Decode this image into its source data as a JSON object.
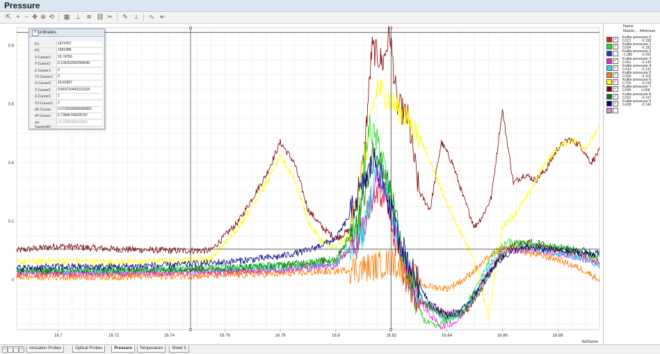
{
  "window": {
    "title": "Pressure"
  },
  "toolbar": {
    "icons": [
      "cursor-icon",
      "zoom-in-icon",
      "zoom-out-icon",
      "pan-icon",
      "zoom-region-icon",
      "reset-view-icon",
      "chart-type-icon",
      "axis-icon",
      "series-icon",
      "link-icon",
      "unlink-icon",
      "marker-icon",
      "measure-icon",
      "trend-icon",
      "back-icon"
    ]
  },
  "coordinates_panel": {
    "title": "Coordinates",
    "rows": [
      {
        "label": "P1:",
        "value": "1674767"
      },
      {
        "label": "P2:",
        "value": "1681988"
      },
      {
        "label": "X-Cursor1:",
        "value": "16.74766"
      },
      {
        "label": "Y-Cursor1:",
        "value": "0.105252952056648"
      },
      {
        "label": "Z-Cursor1:",
        "value": "0"
      },
      {
        "label": "Y2-Cursor1:",
        "value": "0"
      },
      {
        "label": "X-Cursor2:",
        "value": "16.81987"
      },
      {
        "label": "Y-Cursor2:",
        "value": "0.843710442312318"
      },
      {
        "label": "Z-Cursor2:",
        "value": "1"
      },
      {
        "label": "Y2-Cursor2:",
        "value": "1"
      },
      {
        "label": "dX-Cursor:",
        "value": "0.0722099999999983"
      },
      {
        "label": "dY-Cursor:",
        "value": "0.73845749025767"
      },
      {
        "label": "dY-Cursor/dX:",
        "value": "10.2265266019261"
      }
    ]
  },
  "legend": {
    "header": {
      "name": "Name",
      "max": "Maxim...",
      "min": "Minimum"
    },
    "items": [
      {
        "name": "Kulite pressure 0",
        "max": "0.521",
        "min": "-0.158",
        "color": "#e02020",
        "checked": true
      },
      {
        "name": "Kulite pressure 1",
        "max": "0.594",
        "min": "-0.182",
        "color": "#22dd22",
        "checked": true
      },
      {
        "name": "Kulite pressure 2",
        "max": "-1.385",
        "min": "-2.262",
        "color": "#2233cc",
        "checked": false
      },
      {
        "name": "Kulite pressure 3",
        "max": "0.462",
        "min": "-0.149",
        "color": "#ee22ee",
        "checked": true
      },
      {
        "name": "Kulite pressure 4",
        "max": "0.419",
        "min": "-0.132",
        "color": "#22dddd",
        "checked": true
      },
      {
        "name": "Kulite pressure 5",
        "max": "0.350",
        "min": "-0.118",
        "color": "#ff7b00",
        "checked": true
      },
      {
        "name": "Kulite pressure 6",
        "max": "0.700",
        "min": "-0.234",
        "color": "#ffff00",
        "checked": true
      },
      {
        "name": "Kulite pressure 7",
        "max": "0.845",
        "min": "0.058",
        "color": "#7f0000",
        "checked": true
      },
      {
        "name": "Kulite pressure 8",
        "max": "0.591",
        "min": "-0.197",
        "color": "#117711",
        "checked": true
      },
      {
        "name": "Kulite pressure 9",
        "max": "0.430",
        "min": "-0.140",
        "color": "#000080",
        "checked": true
      },
      {
        "name": "",
        "max": "",
        "min": "",
        "color": "#dd88dd",
        "checked": false
      }
    ]
  },
  "chart_data": {
    "type": "line",
    "xlabel": "NoName",
    "ylabel": "",
    "xlim": [
      16.685,
      16.895
    ],
    "ylim": [
      -0.17,
      0.86
    ],
    "x_ticks": [
      "16.7",
      "16.72",
      "16.74",
      "16.76",
      "16.78",
      "16.8",
      "16.82",
      "16.84",
      "16.86",
      "16.88"
    ],
    "x_tick_values": [
      16.7,
      16.72,
      16.74,
      16.76,
      16.78,
      16.8,
      16.82,
      16.84,
      16.86,
      16.88
    ],
    "y_ticks": [
      "0",
      "0.2",
      "0.4",
      "0.6",
      "0.8"
    ],
    "y_tick_values": [
      0,
      0.2,
      0.4,
      0.6,
      0.8
    ],
    "grid": true,
    "cursors": {
      "x1": 16.74766,
      "x2": 16.81987,
      "y1": 0.105,
      "y2": 0.844
    },
    "series": [
      {
        "name": "Kulite pressure 7",
        "color": "#7f0000",
        "x": [
          16.685,
          16.7,
          16.72,
          16.74,
          16.755,
          16.765,
          16.775,
          16.78,
          16.785,
          16.79,
          16.795,
          16.8,
          16.805,
          16.81,
          16.813,
          16.817,
          16.8195,
          16.822,
          16.826,
          16.83,
          16.834,
          16.838,
          16.842,
          16.846,
          16.85,
          16.853,
          16.856,
          16.86,
          16.864,
          16.868,
          16.872,
          16.876,
          16.88,
          16.884,
          16.888,
          16.892,
          16.895
        ],
        "y": [
          0.1,
          0.115,
          0.105,
          0.1,
          0.1,
          0.2,
          0.36,
          0.47,
          0.4,
          0.24,
          0.18,
          0.14,
          0.17,
          0.4,
          0.79,
          0.74,
          0.845,
          0.6,
          0.55,
          0.3,
          0.24,
          0.47,
          0.4,
          0.28,
          0.18,
          0.22,
          0.28,
          0.58,
          0.33,
          0.36,
          0.34,
          0.38,
          0.45,
          0.48,
          0.46,
          0.4,
          0.44
        ]
      },
      {
        "name": "Kulite pressure 6",
        "color": "#ffff00",
        "x": [
          16.685,
          16.7,
          16.72,
          16.74,
          16.755,
          16.765,
          16.775,
          16.78,
          16.785,
          16.79,
          16.795,
          16.8,
          16.805,
          16.81,
          16.815,
          16.82,
          16.824,
          16.83,
          16.836,
          16.84,
          16.845,
          16.85,
          16.855,
          16.86,
          16.865,
          16.87,
          16.875,
          16.88,
          16.885,
          16.89,
          16.895
        ],
        "y": [
          0.06,
          0.065,
          0.06,
          0.065,
          0.07,
          0.18,
          0.33,
          0.42,
          0.35,
          0.2,
          0.13,
          0.11,
          0.15,
          0.4,
          0.66,
          0.61,
          0.57,
          0.49,
          0.36,
          0.26,
          0.16,
          0.06,
          -0.13,
          0.18,
          0.23,
          0.3,
          0.39,
          0.45,
          0.48,
          0.45,
          0.52
        ]
      },
      {
        "name": "Kulite pressure 0",
        "color": "#e02020",
        "x": [
          16.685,
          16.72,
          16.76,
          16.78,
          16.8,
          16.808,
          16.813,
          16.818,
          16.822,
          16.826,
          16.83,
          16.836,
          16.842,
          16.848,
          16.855,
          16.86,
          16.87,
          16.88,
          16.89,
          16.895
        ],
        "y": [
          0.02,
          0.025,
          0.03,
          0.035,
          0.06,
          0.12,
          0.28,
          0.3,
          0.1,
          -0.02,
          -0.08,
          -0.1,
          -0.12,
          -0.1,
          0.02,
          0.1,
          0.12,
          0.1,
          0.08,
          0.06
        ]
      },
      {
        "name": "Kulite pressure 1",
        "color": "#22dd22",
        "x": [
          16.685,
          16.72,
          16.76,
          16.78,
          16.8,
          16.808,
          16.812,
          16.816,
          16.82,
          16.824,
          16.828,
          16.832,
          16.836,
          16.84,
          16.844,
          16.85,
          16.856,
          16.862,
          16.87,
          16.88,
          16.89,
          16.895
        ],
        "y": [
          0.03,
          0.03,
          0.04,
          0.05,
          0.07,
          0.18,
          0.52,
          0.45,
          0.28,
          0.05,
          -0.06,
          -0.14,
          -0.16,
          -0.14,
          -0.12,
          -0.04,
          0.08,
          0.13,
          0.12,
          0.11,
          0.09,
          0.07
        ]
      },
      {
        "name": "Kulite pressure 3",
        "color": "#ee22ee",
        "x": [
          16.685,
          16.72,
          16.76,
          16.78,
          16.8,
          16.81,
          16.815,
          16.82,
          16.826,
          16.832,
          16.838,
          16.844,
          16.85,
          16.856,
          16.862,
          16.87,
          16.88,
          16.89,
          16.895
        ],
        "y": [
          0.02,
          0.02,
          0.025,
          0.03,
          0.05,
          0.17,
          0.36,
          0.22,
          0.02,
          -0.1,
          -0.16,
          -0.14,
          -0.06,
          0.05,
          0.1,
          0.1,
          0.09,
          0.07,
          0.05
        ]
      },
      {
        "name": "Kulite pressure 4",
        "color": "#22dddd",
        "x": [
          16.685,
          16.72,
          16.76,
          16.78,
          16.8,
          16.81,
          16.815,
          16.82,
          16.826,
          16.832,
          16.838,
          16.844,
          16.85,
          16.856,
          16.862,
          16.87,
          16.88,
          16.89,
          16.895
        ],
        "y": [
          0.03,
          0.03,
          0.035,
          0.04,
          0.055,
          0.16,
          0.4,
          0.24,
          0.03,
          -0.08,
          -0.13,
          -0.12,
          -0.05,
          0.06,
          0.11,
          0.11,
          0.09,
          0.07,
          0.05
        ]
      },
      {
        "name": "Kulite pressure 5",
        "color": "#ff7b00",
        "x": [
          16.685,
          16.72,
          16.76,
          16.78,
          16.8,
          16.81,
          16.816,
          16.82,
          16.826,
          16.832,
          16.84,
          16.846,
          16.852,
          16.858,
          16.864,
          16.87,
          16.88,
          16.89,
          16.895
        ],
        "y": [
          0.01,
          0.01,
          0.015,
          0.02,
          0.03,
          0.04,
          0.05,
          0.06,
          0.03,
          -0.02,
          -0.03,
          0.0,
          0.05,
          0.1,
          0.11,
          0.09,
          0.07,
          0.03,
          0.0
        ]
      },
      {
        "name": "Kulite pressure 8",
        "color": "#117711",
        "x": [
          16.685,
          16.72,
          16.76,
          16.78,
          16.8,
          16.808,
          16.814,
          16.82,
          16.826,
          16.832,
          16.84,
          16.846,
          16.852,
          16.858,
          16.864,
          16.87,
          16.88,
          16.89,
          16.895
        ],
        "y": [
          0.03,
          0.035,
          0.04,
          0.05,
          0.07,
          0.2,
          0.45,
          0.3,
          0.02,
          -0.08,
          -0.13,
          -0.11,
          -0.04,
          0.06,
          0.12,
          0.13,
          0.11,
          0.1,
          0.08
        ]
      },
      {
        "name": "Kulite pressure 9",
        "color": "#000080",
        "x": [
          16.685,
          16.7,
          16.72,
          16.74,
          16.76,
          16.78,
          16.79,
          16.8,
          16.805,
          16.81,
          16.814,
          16.818,
          16.822,
          16.828,
          16.834,
          16.84,
          16.846,
          16.852,
          16.858,
          16.864,
          16.87,
          16.88,
          16.89,
          16.895
        ],
        "y": [
          0.04,
          0.045,
          0.045,
          0.05,
          0.06,
          0.08,
          0.1,
          0.14,
          0.22,
          0.33,
          0.41,
          0.3,
          0.16,
          0.02,
          -0.08,
          -0.12,
          -0.1,
          -0.02,
          0.06,
          0.1,
          0.11,
          0.1,
          0.09,
          0.09
        ]
      }
    ]
  },
  "sheet_tabs": {
    "nav": [
      "|<",
      "<",
      ">",
      ">|"
    ],
    "tabs": [
      {
        "label": "Ionisation Probes",
        "active": false
      },
      {
        "label": "Optical Probes",
        "active": false
      },
      {
        "label": "Pressure",
        "active": true
      },
      {
        "label": "Temperature",
        "active": false
      },
      {
        "label": "Sheet 5",
        "active": false
      }
    ]
  }
}
